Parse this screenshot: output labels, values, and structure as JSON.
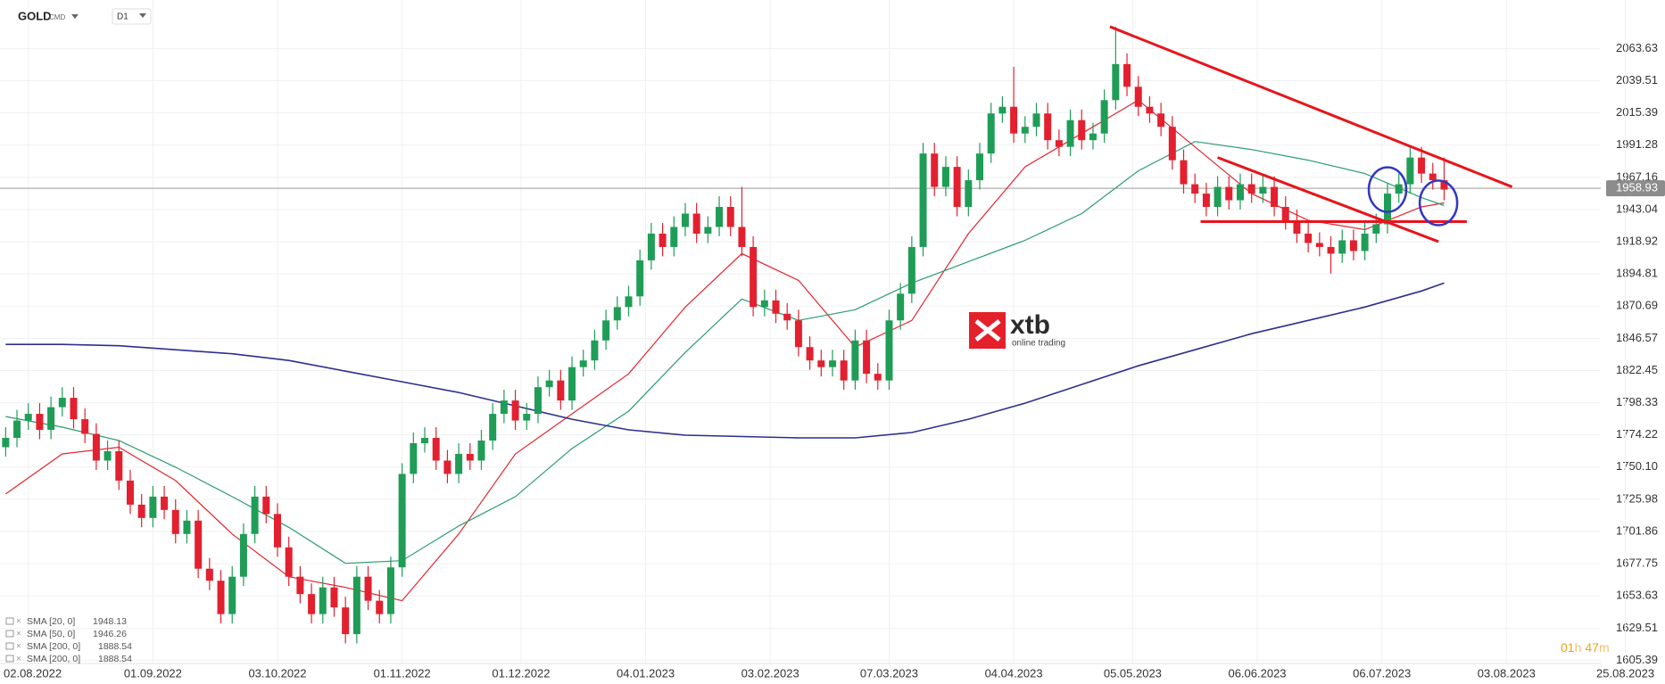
{
  "header": {
    "symbol": "GOLD",
    "market": "CMD",
    "interval": "D1"
  },
  "logo": {
    "brand": "xtb",
    "tagline": "online trading"
  },
  "timer": {
    "hours": "01",
    "h": "h",
    "minutes": "47",
    "m": "m"
  },
  "chart_data": {
    "type": "candlestick",
    "xlim": [
      -1,
      293
    ],
    "ylim": [
      1603,
      2100
    ],
    "xticks": [
      {
        "value": 4,
        "label": "02.08.2022"
      },
      {
        "value": 26,
        "label": "01.09.2022"
      },
      {
        "value": 48,
        "label": "03.10.2022"
      },
      {
        "value": 70,
        "label": "01.11.2022"
      },
      {
        "value": 91,
        "label": "01.12.2022"
      },
      {
        "value": 113,
        "label": "04.01.2023"
      },
      {
        "value": 135,
        "label": "03.02.2023"
      },
      {
        "value": 156,
        "label": "07.03.2023"
      },
      {
        "value": 178,
        "label": "04.04.2023"
      },
      {
        "value": 199,
        "label": "05.05.2023"
      },
      {
        "value": 221,
        "label": "06.06.2023"
      },
      {
        "value": 243,
        "label": "06.07.2023"
      },
      {
        "value": 265,
        "label": "03.08.2023"
      },
      {
        "value": 286,
        "label": "25.08.2023"
      }
    ],
    "yticks": [
      1605.39,
      1629.51,
      1653.63,
      1677.75,
      1701.86,
      1725.98,
      {
        "value": 1750.1,
        "label": "1750.10"
      },
      1774.22,
      1798.33,
      1822.45,
      1846.57,
      1870.69,
      1894.81,
      1918.92,
      1943.04,
      1967.16,
      1991.28,
      2015.39,
      2039.51,
      2063.63
    ],
    "grid": true,
    "up_color": "#1f9d57",
    "down_color": "#e3202f",
    "last_price": 1958.93,
    "candles": {
      "x": [
        0,
        2,
        4,
        6,
        8,
        10,
        12,
        14,
        16,
        18,
        20,
        22,
        24,
        26,
        28,
        30,
        32,
        34,
        36,
        38,
        40,
        42,
        44,
        46,
        48,
        50,
        52,
        54,
        56,
        58,
        60,
        62,
        64,
        66,
        68,
        70,
        72,
        74,
        76,
        78,
        80,
        82,
        84,
        86,
        88,
        90,
        92,
        94,
        96,
        98,
        100,
        102,
        104,
        106,
        108,
        110,
        112,
        114,
        116,
        118,
        120,
        122,
        124,
        126,
        128,
        130,
        132,
        134,
        136,
        138,
        140,
        142,
        144,
        146,
        148,
        150,
        152,
        154,
        156,
        158,
        160,
        162,
        164,
        166,
        168,
        170,
        172,
        174,
        176,
        178,
        180,
        182,
        184,
        186,
        188,
        190,
        192,
        194,
        196,
        198,
        200,
        202,
        204,
        206,
        208,
        210,
        212,
        214,
        216,
        218,
        220,
        222,
        224,
        226,
        228,
        230,
        232,
        234,
        236,
        238,
        240,
        242,
        244,
        246,
        248,
        250,
        252,
        254
      ],
      "open": [
        1765,
        1772,
        1785,
        1790,
        1778,
        1795,
        1802,
        1786,
        1775,
        1755,
        1762,
        1740,
        1722,
        1712,
        1728,
        1718,
        1700,
        1710,
        1674,
        1665,
        1640,
        1668,
        1700,
        1728,
        1715,
        1690,
        1668,
        1655,
        1640,
        1660,
        1645,
        1625,
        1668,
        1650,
        1640,
        1675,
        1745,
        1768,
        1772,
        1755,
        1745,
        1760,
        1755,
        1770,
        1790,
        1800,
        1785,
        1790,
        1810,
        1815,
        1800,
        1825,
        1830,
        1845,
        1860,
        1870,
        1878,
        1905,
        1925,
        1915,
        1930,
        1940,
        1925,
        1930,
        1945,
        1930,
        1915,
        1870,
        1875,
        1865,
        1860,
        1840,
        1830,
        1825,
        1830,
        1815,
        1845,
        1820,
        1815,
        1860,
        1880,
        1915,
        1985,
        1960,
        1975,
        1945,
        1965,
        1985,
        2015,
        2020,
        2000,
        2005,
        2015,
        1995,
        1990,
        2010,
        1995,
        2000,
        2025,
        2052,
        2035,
        2020,
        2015,
        2005,
        1980,
        1962,
        1955,
        1945,
        1960,
        1950,
        1962,
        1955,
        1960,
        1945,
        1935,
        1925,
        1918,
        1915,
        1910,
        1920,
        1912,
        1925,
        1932,
        1955,
        1962,
        1982,
        1970,
        1965
      ],
      "high": [
        1780,
        1793,
        1798,
        1798,
        1803,
        1810,
        1810,
        1794,
        1783,
        1770,
        1770,
        1748,
        1730,
        1736,
        1736,
        1726,
        1718,
        1718,
        1682,
        1673,
        1676,
        1708,
        1736,
        1736,
        1723,
        1698,
        1676,
        1663,
        1668,
        1668,
        1653,
        1676,
        1676,
        1658,
        1683,
        1753,
        1776,
        1780,
        1780,
        1763,
        1768,
        1768,
        1778,
        1798,
        1808,
        1808,
        1798,
        1818,
        1823,
        1823,
        1833,
        1838,
        1853,
        1868,
        1878,
        1886,
        1913,
        1933,
        1933,
        1938,
        1948,
        1948,
        1938,
        1953,
        1953,
        1960,
        1923,
        1883,
        1883,
        1873,
        1868,
        1848,
        1838,
        1838,
        1838,
        1853,
        1853,
        1828,
        1868,
        1888,
        1923,
        1993,
        1993,
        1983,
        1983,
        1973,
        1993,
        2023,
        2028,
        2050,
        2013,
        2023,
        2023,
        2003,
        2018,
        2018,
        2008,
        2033,
        2080,
        2060,
        2043,
        2028,
        2023,
        2013,
        1988,
        1970,
        1963,
        1968,
        1968,
        1970,
        1970,
        1968,
        1968,
        1953,
        1943,
        1933,
        1926,
        1923,
        1928,
        1928,
        1933,
        1940,
        1963,
        1970,
        1990,
        1990,
        1978,
        1982
      ],
      "low": [
        1758,
        1765,
        1778,
        1771,
        1771,
        1788,
        1779,
        1768,
        1748,
        1748,
        1733,
        1715,
        1705,
        1705,
        1711,
        1693,
        1693,
        1667,
        1658,
        1633,
        1633,
        1661,
        1693,
        1708,
        1683,
        1661,
        1648,
        1633,
        1633,
        1638,
        1618,
        1618,
        1643,
        1633,
        1633,
        1668,
        1738,
        1761,
        1748,
        1738,
        1738,
        1748,
        1748,
        1763,
        1783,
        1778,
        1778,
        1783,
        1803,
        1793,
        1793,
        1818,
        1823,
        1838,
        1853,
        1863,
        1871,
        1898,
        1908,
        1908,
        1923,
        1918,
        1918,
        1923,
        1923,
        1908,
        1863,
        1863,
        1858,
        1853,
        1833,
        1823,
        1818,
        1818,
        1808,
        1808,
        1813,
        1808,
        1808,
        1853,
        1873,
        1908,
        1953,
        1953,
        1938,
        1938,
        1958,
        1978,
        2008,
        1993,
        1993,
        1998,
        1988,
        1983,
        1983,
        1988,
        1988,
        1993,
        2018,
        2028,
        2013,
        2008,
        1998,
        1973,
        1955,
        1948,
        1938,
        1938,
        1943,
        1943,
        1948,
        1948,
        1938,
        1928,
        1918,
        1911,
        1908,
        1895,
        1903,
        1905,
        1905,
        1918,
        1925,
        1948,
        1955,
        1963,
        1958,
        1950
      ],
      "close": [
        1772,
        1785,
        1790,
        1778,
        1795,
        1802,
        1786,
        1775,
        1755,
        1762,
        1740,
        1722,
        1712,
        1728,
        1718,
        1700,
        1710,
        1674,
        1665,
        1640,
        1668,
        1700,
        1728,
        1715,
        1690,
        1668,
        1655,
        1640,
        1660,
        1645,
        1625,
        1668,
        1650,
        1640,
        1675,
        1745,
        1768,
        1772,
        1755,
        1745,
        1760,
        1755,
        1770,
        1790,
        1800,
        1785,
        1790,
        1810,
        1815,
        1800,
        1825,
        1830,
        1845,
        1860,
        1870,
        1878,
        1905,
        1925,
        1915,
        1930,
        1940,
        1925,
        1930,
        1945,
        1930,
        1915,
        1870,
        1875,
        1865,
        1860,
        1840,
        1830,
        1825,
        1830,
        1815,
        1845,
        1820,
        1815,
        1860,
        1880,
        1915,
        1985,
        1960,
        1975,
        1945,
        1965,
        1985,
        2015,
        2020,
        2000,
        2005,
        2015,
        1995,
        1990,
        2010,
        1995,
        2000,
        2025,
        2052,
        2035,
        2020,
        2015,
        2005,
        1980,
        1962,
        1955,
        1945,
        1960,
        1950,
        1962,
        1955,
        1960,
        1945,
        1935,
        1925,
        1918,
        1915,
        1910,
        1920,
        1912,
        1925,
        1932,
        1955,
        1962,
        1982,
        1970,
        1965,
        1958
      ]
    },
    "series": [
      {
        "color": "#e3262f",
        "x": [
          0,
          10,
          20,
          30,
          40,
          50,
          60,
          70,
          80,
          90,
          100,
          110,
          120,
          130,
          140,
          150,
          160,
          170,
          180,
          190,
          200,
          210,
          220,
          230,
          240,
          250,
          254
        ],
        "values": [
          1730,
          1760,
          1765,
          1740,
          1700,
          1668,
          1660,
          1650,
          1700,
          1760,
          1790,
          1820,
          1870,
          1910,
          1890,
          1840,
          1860,
          1925,
          1975,
          2000,
          2025,
          1990,
          1955,
          1935,
          1928,
          1945,
          1948
        ]
      },
      {
        "color": "#2a9d6e",
        "x": [
          0,
          10,
          20,
          30,
          40,
          50,
          60,
          70,
          80,
          90,
          100,
          110,
          120,
          130,
          140,
          150,
          160,
          170,
          180,
          190,
          200,
          210,
          220,
          230,
          240,
          250,
          254
        ],
        "values": [
          1788,
          1780,
          1770,
          1750,
          1728,
          1705,
          1678,
          1680,
          1706,
          1728,
          1764,
          1792,
          1836,
          1876,
          1860,
          1868,
          1888,
          1904,
          1920,
          1940,
          1972,
          1994,
          1988,
          1980,
          1970,
          1952,
          1946
        ]
      },
      {
        "color": "#2d2f8f",
        "x": [
          0,
          10,
          20,
          30,
          40,
          50,
          60,
          70,
          80,
          90,
          100,
          110,
          120,
          130,
          140,
          150,
          160,
          170,
          180,
          190,
          200,
          210,
          220,
          230,
          240,
          250,
          254
        ],
        "values": [
          1842,
          1842,
          1841,
          1838,
          1835,
          1830,
          1822,
          1814,
          1806,
          1796,
          1786,
          1778,
          1774,
          1773,
          1772,
          1772,
          1776,
          1786,
          1798,
          1812,
          1826,
          1838,
          1850,
          1860,
          1870,
          1882,
          1888
        ]
      }
    ],
    "legend": [
      {
        "name": "SMA [20, 0]",
        "value": 1948.13
      },
      {
        "name": "SMA [50, 0]",
        "value": 1946.26
      },
      {
        "name": "SMA [200, 0]",
        "value": 1888.54
      },
      {
        "name": "SMA [200, 0]",
        "value": 1888.54
      }
    ],
    "trendline_color": "#e8141c",
    "trendlines": [
      {
        "x": [
          195,
          266
        ],
        "y": [
          2080,
          1960
        ]
      },
      {
        "x": [
          214,
          253
        ],
        "y": [
          1982,
          1919
        ]
      },
      {
        "x": [
          211,
          258
        ],
        "y": [
          1934,
          1934
        ]
      }
    ],
    "circle_color": "#3338c0",
    "circles": [
      {
        "x": 244,
        "y": 1958
      },
      {
        "x": 253,
        "y": 1948
      }
    ]
  }
}
